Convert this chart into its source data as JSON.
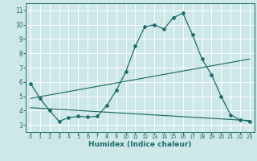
{
  "xlabel": "Humidex (Indice chaleur)",
  "xlim": [
    -0.5,
    23.5
  ],
  "ylim": [
    2.5,
    11.5
  ],
  "xticks": [
    0,
    1,
    2,
    3,
    4,
    5,
    6,
    7,
    8,
    9,
    10,
    11,
    12,
    13,
    14,
    15,
    16,
    17,
    18,
    19,
    20,
    21,
    22,
    23
  ],
  "yticks": [
    3,
    4,
    5,
    6,
    7,
    8,
    9,
    10,
    11
  ],
  "bg_color": "#cde8e8",
  "line_color": "#1a6b6b",
  "grid_color": "#ffffff",
  "curve1_x": [
    0,
    1,
    2,
    3,
    4,
    5,
    6,
    7,
    8,
    9,
    10,
    11,
    12,
    13,
    14,
    15,
    16,
    17,
    18,
    19,
    20,
    21,
    22,
    23
  ],
  "curve1_y": [
    5.9,
    4.85,
    4.0,
    3.25,
    3.5,
    3.6,
    3.55,
    3.6,
    4.35,
    5.4,
    6.7,
    8.5,
    9.85,
    10.0,
    9.7,
    10.5,
    10.8,
    9.3,
    7.6,
    6.5,
    5.0,
    3.7,
    3.35,
    3.25
  ],
  "curve2_x": [
    0,
    23
  ],
  "curve2_y": [
    4.85,
    7.6
  ],
  "curve3_x": [
    0,
    23
  ],
  "curve3_y": [
    4.2,
    3.3
  ]
}
